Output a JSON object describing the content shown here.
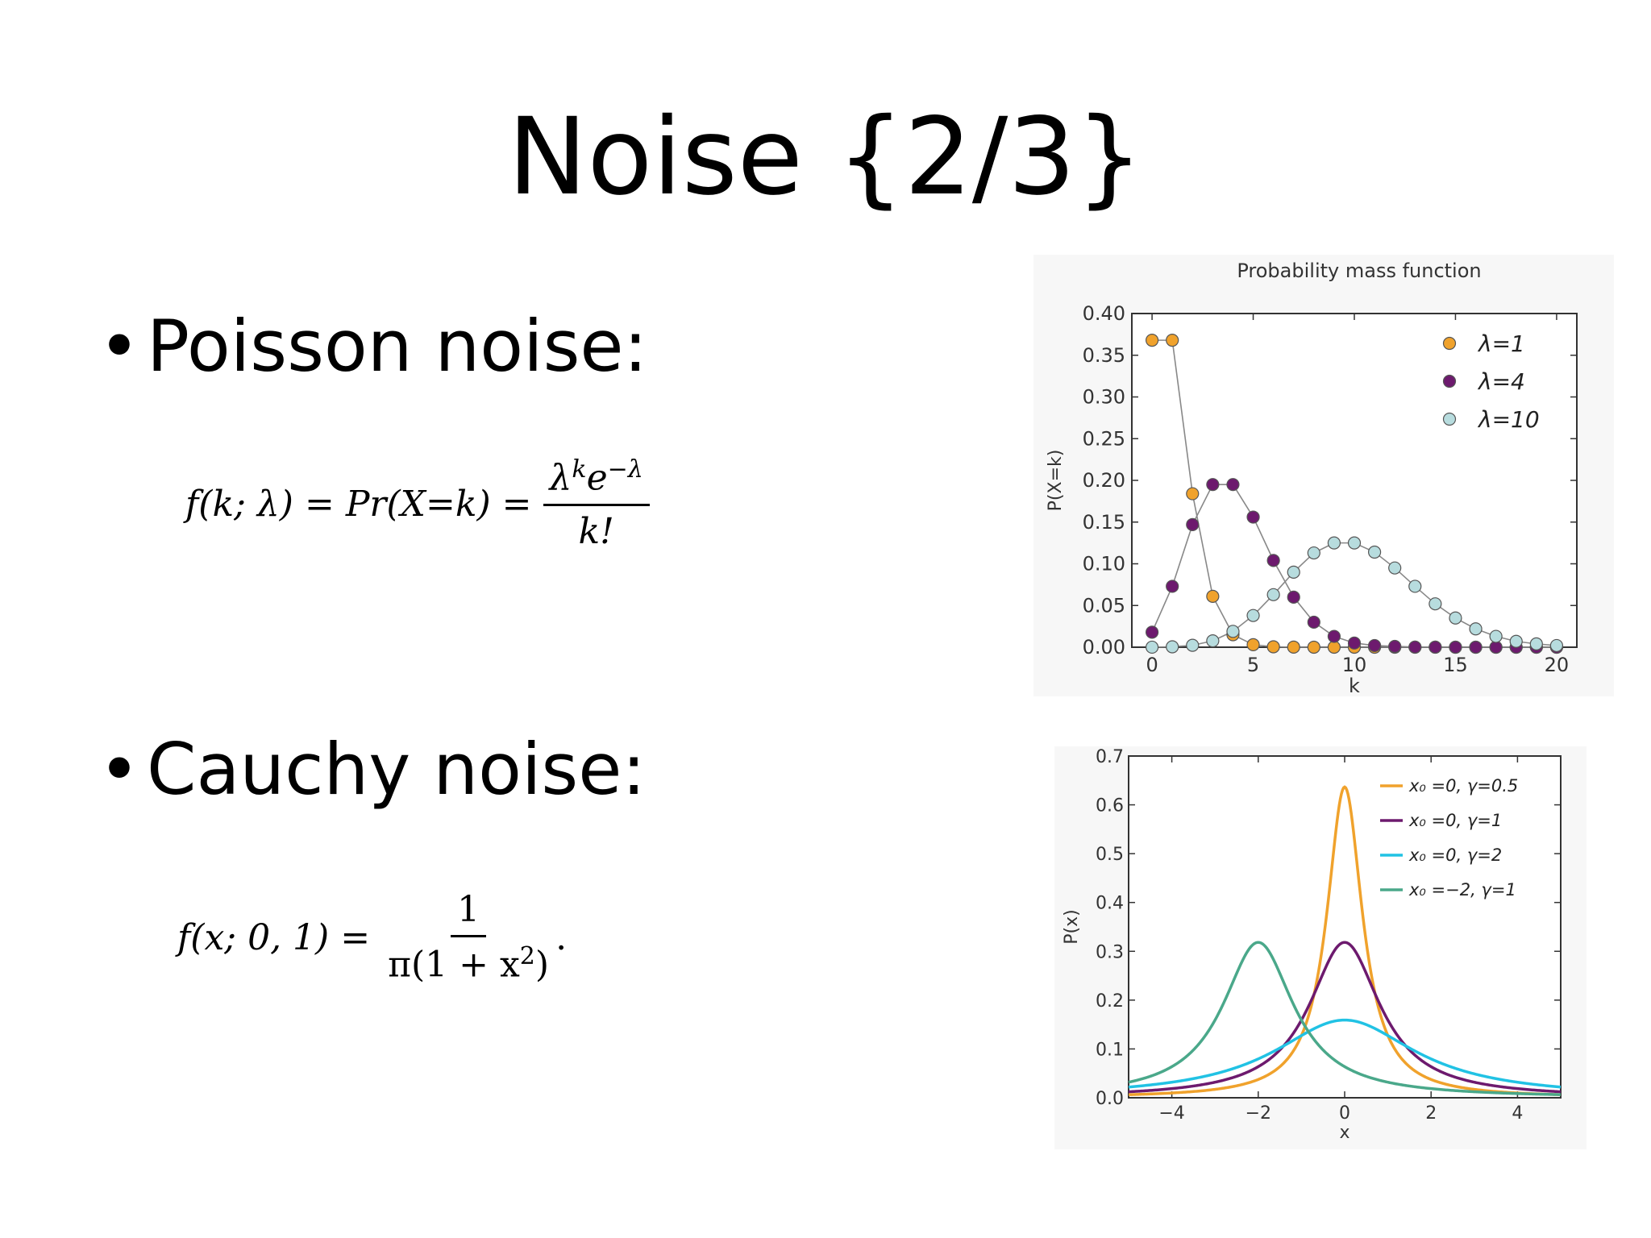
{
  "slide": {
    "title": "Noise {2/3}",
    "bullets": [
      {
        "bullet_char": "•",
        "text": "Poisson noise:"
      },
      {
        "bullet_char": "•",
        "text": "Cauchy noise:"
      }
    ]
  },
  "formulas": {
    "poisson": {
      "lhs": "f(k; λ) = Pr(X=k) =",
      "num_base": "λ",
      "num_exp1": "k",
      "num_mid": "e",
      "num_exp2": "−λ",
      "den": "k!"
    },
    "cauchy": {
      "lhs": "f(x; 0, 1) =",
      "num": "1",
      "den_pre": "π(1 + x",
      "den_exp": "2",
      "den_post": ")",
      "trail": "."
    }
  },
  "colors": {
    "orange": "#f0a22c",
    "purple": "#6d1a6e",
    "lightblue": "#b7dcde",
    "cyan": "#21c2e4",
    "green": "#4aa88a",
    "connector": "#888888"
  },
  "chart_data": [
    {
      "type": "scatter",
      "title": "Probability mass function",
      "xlabel": "k",
      "ylabel": "P(X=k)",
      "xlim": [
        -1,
        21
      ],
      "ylim": [
        0,
        0.4
      ],
      "xticks": [
        "0",
        "5",
        "10",
        "15",
        "20"
      ],
      "yticks": [
        "0.00",
        "0.05",
        "0.10",
        "0.15",
        "0.20",
        "0.25",
        "0.30",
        "0.35",
        "0.40"
      ],
      "legend_position": "top-right",
      "x": [
        0,
        1,
        2,
        3,
        4,
        5,
        6,
        7,
        8,
        9,
        10,
        11,
        12,
        13,
        14,
        15,
        16,
        17,
        18,
        19,
        20
      ],
      "series": [
        {
          "name": "λ=1",
          "color": "#f0a22c",
          "values": [
            0.368,
            0.368,
            0.184,
            0.061,
            0.015,
            0.003,
            0.0005,
            0.0001,
            0,
            0,
            0,
            0,
            0,
            0,
            0,
            0,
            0,
            0,
            0,
            0,
            0
          ]
        },
        {
          "name": "λ=4",
          "color": "#6d1a6e",
          "values": [
            0.018,
            0.073,
            0.147,
            0.195,
            0.195,
            0.156,
            0.104,
            0.06,
            0.03,
            0.013,
            0.005,
            0.002,
            0.001,
            0.0002,
            0.0001,
            0,
            0,
            0,
            0,
            0,
            0
          ]
        },
        {
          "name": "λ=10",
          "color": "#b7dcde",
          "values": [
            5e-05,
            0.0005,
            0.0023,
            0.0076,
            0.019,
            0.038,
            0.063,
            0.09,
            0.113,
            0.125,
            0.125,
            0.114,
            0.095,
            0.073,
            0.052,
            0.035,
            0.022,
            0.013,
            0.007,
            0.004,
            0.002
          ]
        }
      ]
    },
    {
      "type": "line",
      "title": "",
      "xlabel": "x",
      "ylabel": "P(x)",
      "xlim": [
        -5,
        5
      ],
      "ylim": [
        0,
        0.7
      ],
      "xticks": [
        "−4",
        "−2",
        "0",
        "2",
        "4"
      ],
      "yticks": [
        "0.0",
        "0.1",
        "0.2",
        "0.3",
        "0.4",
        "0.5",
        "0.6",
        "0.7"
      ],
      "legend_position": "top-right",
      "series": [
        {
          "name": "x₀ =0, γ=0.5",
          "color": "#f0a22c",
          "x0": 0,
          "gamma": 0.5
        },
        {
          "name": "x₀ =0, γ=1",
          "color": "#6d1a6e",
          "x0": 0,
          "gamma": 1
        },
        {
          "name": "x₀ =0, γ=2",
          "color": "#21c2e4",
          "x0": 0,
          "gamma": 2
        },
        {
          "name": "x₀ =−2, γ=1",
          "color": "#4aa88a",
          "x0": -2,
          "gamma": 1
        }
      ]
    }
  ]
}
